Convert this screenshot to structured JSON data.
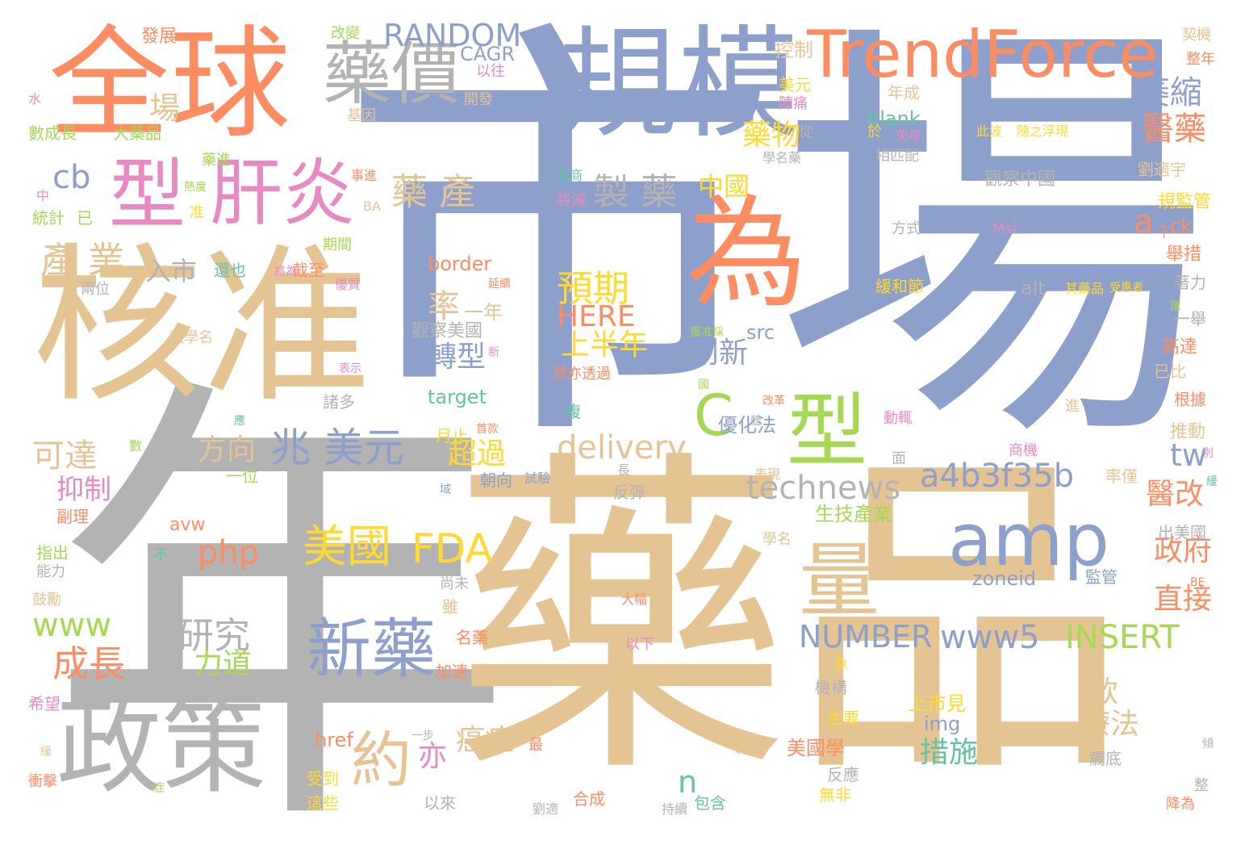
{
  "title": "Word cloud",
  "palette": {
    "blue": "#8DA0CB",
    "orange": "#FC8D62",
    "tan": "#E5C494",
    "gray": "#B3B3B3",
    "green": "#A6D854",
    "yellow": "#FFD92F",
    "pink": "#E78AC3",
    "teal": "#66C2A5"
  },
  "words": [
    {
      "text": "市場"
    },
    {
      "text": "年"
    },
    {
      "text": "藥品"
    },
    {
      "text": "核准"
    },
    {
      "text": "全球"
    },
    {
      "text": "規模"
    },
    {
      "text": "為"
    },
    {
      "text": "TrendForce"
    },
    {
      "text": "政策"
    },
    {
      "text": "型"
    },
    {
      "text": "肝炎"
    },
    {
      "text": "型"
    },
    {
      "text": "amp"
    },
    {
      "text": "量"
    },
    {
      "text": "藥價"
    },
    {
      "text": "新藥"
    },
    {
      "text": "C"
    },
    {
      "text": "約"
    },
    {
      "text": "兆 美元"
    },
    {
      "text": "FDA"
    },
    {
      "text": "美國"
    },
    {
      "text": "a4b3f35b"
    },
    {
      "text": "technews"
    },
    {
      "text": "delivery"
    },
    {
      "text": "RANDOM"
    },
    {
      "text": "產 業"
    },
    {
      "text": "藥 產"
    },
    {
      "text": "製 藥"
    },
    {
      "text": "萎縮"
    },
    {
      "text": "醫藥"
    },
    {
      "text": "研究"
    },
    {
      "text": "www5"
    },
    {
      "text": "INSERT"
    },
    {
      "text": "www"
    },
    {
      "text": "NUMBER"
    },
    {
      "text": "成長"
    },
    {
      "text": "可達"
    },
    {
      "text": "php"
    },
    {
      "text": "預期"
    },
    {
      "text": "cb"
    },
    {
      "text": "HERE"
    },
    {
      "text": "上半年"
    },
    {
      "text": "藥物"
    },
    {
      "text": "tw"
    },
    {
      "text": "a"
    },
    {
      "text": "n"
    },
    {
      "text": "創新"
    },
    {
      "text": "轉型"
    },
    {
      "text": "率"
    },
    {
      "text": "中國"
    },
    {
      "text": "直接"
    },
    {
      "text": "政府"
    },
    {
      "text": "醫改"
    },
    {
      "text": "措施"
    },
    {
      "text": "療法"
    },
    {
      "text": "款"
    },
    {
      "text": "癌症"
    },
    {
      "text": "亦"
    },
    {
      "text": "超過"
    },
    {
      "text": "方向"
    },
    {
      "text": "抑制"
    },
    {
      "text": "力道"
    },
    {
      "text": "入市"
    },
    {
      "text": "場"
    },
    {
      "text": "控制"
    },
    {
      "text": "CAGR"
    },
    {
      "text": "blank"
    },
    {
      "text": "border"
    },
    {
      "text": "target"
    },
    {
      "text": "src"
    },
    {
      "text": "alt"
    },
    {
      "text": "zoneid"
    },
    {
      "text": "img"
    },
    {
      "text": "href"
    },
    {
      "text": "avw"
    },
    {
      "text": "ck"
    },
    {
      "text": "生技產業"
    },
    {
      "text": "一年"
    },
    {
      "text": "優化法"
    },
    {
      "text": "觀察美國"
    },
    {
      "text": "觀察中國"
    },
    {
      "text": "美國學"
    },
    {
      "text": "上市見"
    },
    {
      "text": "發展"
    },
    {
      "text": "改變"
    },
    {
      "text": "以往"
    },
    {
      "text": "開發"
    },
    {
      "text": "美元"
    },
    {
      "text": "陣痛"
    },
    {
      "text": "年成"
    },
    {
      "text": "從"
    },
    {
      "text": "於"
    },
    {
      "text": "相匹配"
    },
    {
      "text": "學名藥"
    },
    {
      "text": "方式"
    },
    {
      "text": "Msi"
    },
    {
      "text": "此波"
    },
    {
      "text": "隨之浮現"
    },
    {
      "text": "劉適宇"
    },
    {
      "text": "規監管"
    },
    {
      "text": "舉措"
    },
    {
      "text": "著力"
    },
    {
      "text": "一舉"
    },
    {
      "text": "高達"
    },
    {
      "text": "已比"
    },
    {
      "text": "根據"
    },
    {
      "text": "推動"
    },
    {
      "text": "率僅"
    },
    {
      "text": "出美國"
    },
    {
      "text": "監管"
    },
    {
      "text": "契機"
    },
    {
      "text": "整年"
    },
    {
      "text": "數成長"
    },
    {
      "text": "大藥品"
    },
    {
      "text": "水"
    },
    {
      "text": "中"
    },
    {
      "text": "統計"
    },
    {
      "text": "已"
    },
    {
      "text": "兩位"
    },
    {
      "text": "款學名"
    },
    {
      "text": "指出"
    },
    {
      "text": "能力"
    },
    {
      "text": "鼓勵"
    },
    {
      "text": "副理"
    },
    {
      "text": "希望"
    },
    {
      "text": "衝擊"
    },
    {
      "text": "期間"
    },
    {
      "text": "還也"
    },
    {
      "text": "截至"
    },
    {
      "text": "諸多"
    },
    {
      "text": "受到"
    },
    {
      "text": "這些"
    },
    {
      "text": "以來"
    },
    {
      "text": "合成"
    },
    {
      "text": "無非"
    },
    {
      "text": "反應"
    },
    {
      "text": "影響"
    },
    {
      "text": "主要"
    },
    {
      "text": "機構"
    },
    {
      "text": "觸底"
    },
    {
      "text": "加速"
    },
    {
      "text": "名藥"
    },
    {
      "text": "以下"
    },
    {
      "text": "大幅"
    },
    {
      "text": "雖"
    },
    {
      "text": "朝向"
    },
    {
      "text": "試驗"
    },
    {
      "text": "反彈"
    },
    {
      "text": "長"
    },
    {
      "text": "月止"
    },
    {
      "text": "首款"
    },
    {
      "text": "複"
    },
    {
      "text": "然亦透過"
    },
    {
      "text": "將減"
    },
    {
      "text": "電商"
    },
    {
      "text": "藥進"
    },
    {
      "text": "基因"
    },
    {
      "text": "緩和節"
    },
    {
      "text": "其藥品"
    },
    {
      "text": "受惠者"
    },
    {
      "text": "免疫"
    },
    {
      "text": "下"
    },
    {
      "text": "BA"
    },
    {
      "text": "BE"
    },
    {
      "text": "進"
    },
    {
      "text": "尚未"
    },
    {
      "text": "不"
    },
    {
      "text": "最"
    },
    {
      "text": "包含"
    },
    {
      "text": "持續"
    },
    {
      "text": "劉適"
    },
    {
      "text": "降為"
    },
    {
      "text": "整"
    },
    {
      "text": "傾"
    },
    {
      "text": "一步"
    },
    {
      "text": "緩"
    },
    {
      "text": "症"
    },
    {
      "text": "新"
    },
    {
      "text": "表示"
    },
    {
      "text": "國"
    },
    {
      "text": "體"
    },
    {
      "text": "獲准採"
    },
    {
      "text": "改革"
    },
    {
      "text": "表現"
    },
    {
      "text": "動輒"
    },
    {
      "text": "商機"
    },
    {
      "text": "面"
    },
    {
      "text": "別"
    },
    {
      "text": "域"
    },
    {
      "text": "一位"
    },
    {
      "text": "學名"
    },
    {
      "text": "象"
    },
    {
      "text": "准"
    },
    {
      "text": "熱度"
    },
    {
      "text": "將為"
    },
    {
      "text": "優質"
    },
    {
      "text": "延續"
    },
    {
      "text": "事進"
    },
    {
      "text": "數"
    },
    {
      "text": "應"
    },
    {
      "text": "匯"
    },
    {
      "text": "緩"
    }
  ]
}
